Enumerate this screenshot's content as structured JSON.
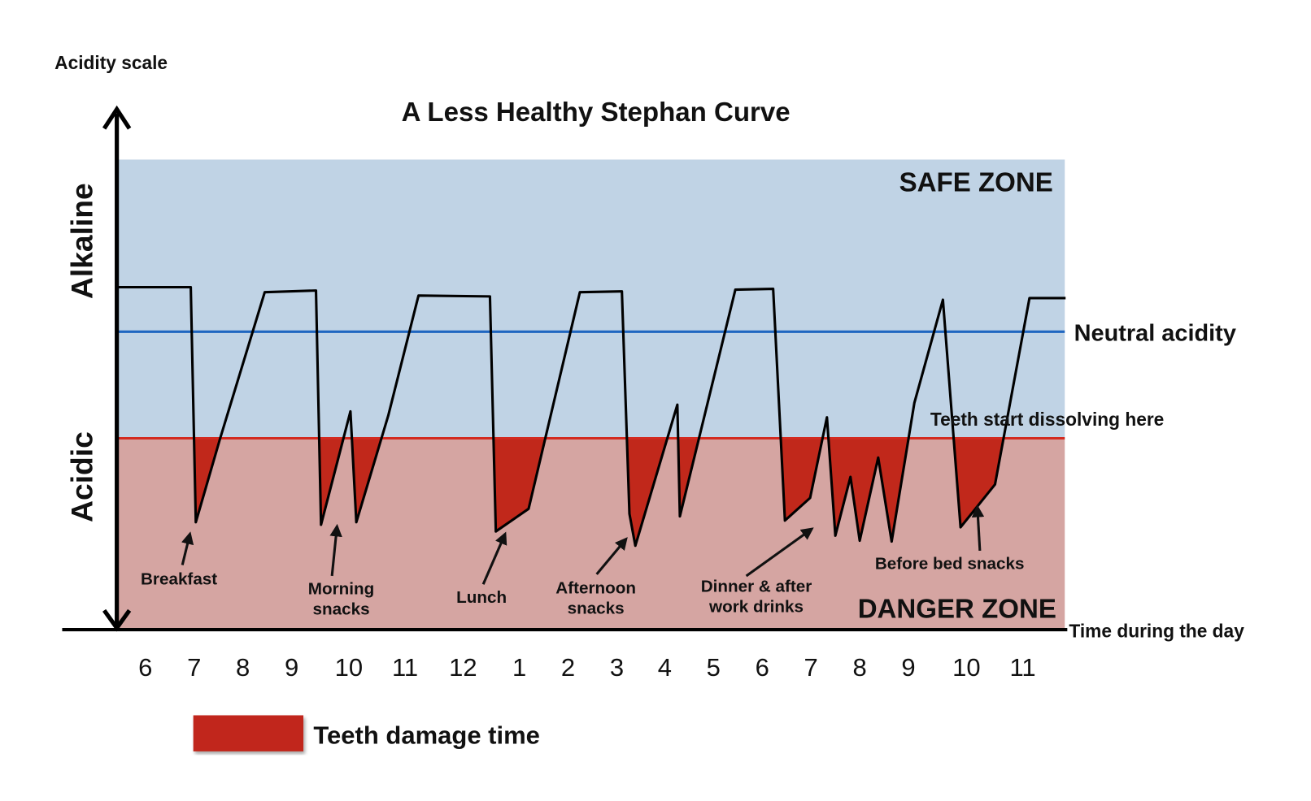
{
  "title": "A Less Healthy Stephan Curve",
  "y_axis_label": "Acidity scale",
  "alkaline": "Alkaline",
  "acidic": "Acidic",
  "safe_zone": "SAFE ZONE",
  "danger_zone": "DANGER ZONE",
  "neutral": "Neutral acidity",
  "dissolve": "Teeth start dissolving here",
  "x_axis_label": "Time during the day",
  "hours": [
    "6",
    "7",
    "8",
    "9",
    "10",
    "11",
    "12",
    "1",
    "2",
    "3",
    "4",
    "5",
    "6",
    "7",
    "8",
    "9",
    "10",
    "11"
  ],
  "annotations": [
    [
      "Breakfast"
    ],
    [
      "Morning",
      "snacks"
    ],
    [
      "Lunch"
    ],
    [
      "Afternoon",
      "snacks"
    ],
    [
      "Dinner & after",
      "work drinks"
    ],
    [
      "Before bed snacks"
    ]
  ],
  "legend": "Teeth damage time"
}
